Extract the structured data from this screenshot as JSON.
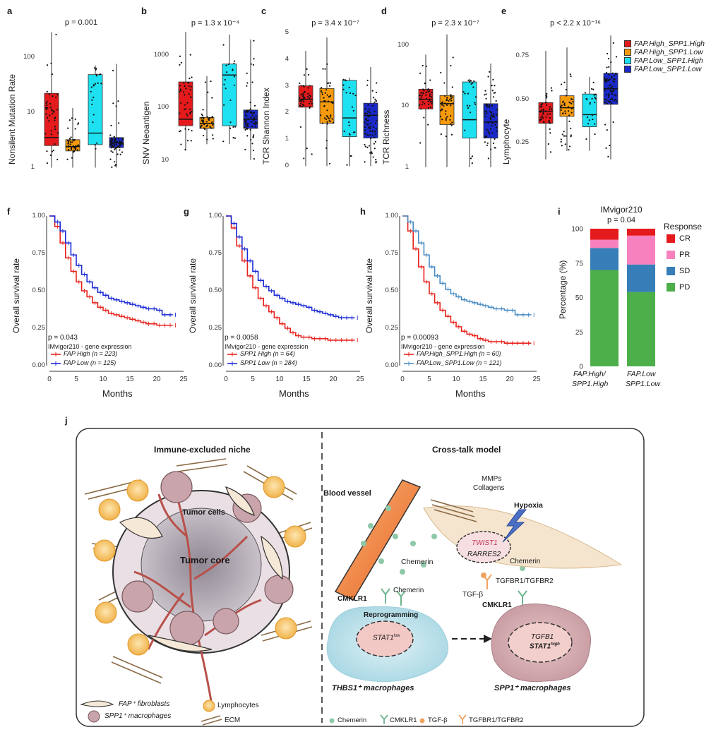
{
  "boxplots": {
    "groups": [
      "FAP.High_SPP1.High",
      "FAP.High_SPP1.Low",
      "FAP.Low_SPP1.High",
      "FAP.Low_SPP1.Low"
    ],
    "colors": [
      "#e41a1c",
      "#f59a0d",
      "#1de1f0",
      "#1a29c7"
    ],
    "panels": [
      {
        "label": "a",
        "pvalue": "p = 0.001",
        "ylabel": "Nonsilent Mutation Rate",
        "scale": "log",
        "ticks": [
          "100",
          "10",
          "1"
        ],
        "chart_data": {
          "type": "box",
          "median": [
            3.5,
            2.4,
            4.2,
            2.8
          ],
          "q1": [
            2.5,
            2.0,
            2.6,
            2.3
          ],
          "q3": [
            22,
            3.2,
            48,
            3.5
          ],
          "min": [
            1,
            1,
            1,
            1
          ],
          "max": [
            280,
            12,
            70,
            75
          ]
        }
      },
      {
        "label": "b",
        "pvalue": "p = 1.3 x 10⁻⁴",
        "ylabel": "SNV Neoantigen",
        "scale": "log",
        "ticks": [
          "1000",
          "100",
          "10"
        ],
        "chart_data": {
          "type": "box",
          "median": [
            60,
            50,
            420,
            60
          ],
          "q1": [
            45,
            40,
            45,
            40
          ],
          "q3": [
            310,
            65,
            680,
            90
          ],
          "min": [
            15,
            20,
            20,
            10
          ],
          "max": [
            2800,
            400,
            2500,
            2000
          ]
        }
      },
      {
        "label": "c",
        "pvalue": "p = 3.4 x 10⁻⁷",
        "ylabel": "TCR Shannon Index",
        "scale": "linear",
        "ticks": [
          "5",
          "4",
          "3",
          "2",
          "1",
          "0"
        ],
        "chart_data": {
          "type": "box",
          "median": [
            2.5,
            2.4,
            1.8,
            1.9
          ],
          "q1": [
            2.2,
            1.6,
            1.1,
            1.05
          ],
          "q3": [
            3.0,
            2.9,
            3.2,
            2.35
          ],
          "min": [
            0,
            0,
            0,
            0
          ],
          "max": [
            4.3,
            4.8,
            3.3,
            3.7
          ]
        }
      },
      {
        "label": "d",
        "pvalue": "p = 2.3 x 10⁻⁷",
        "ylabel": "TCR Richness",
        "scale": "log",
        "ticks": [
          "100",
          "10",
          "1"
        ],
        "chart_data": {
          "type": "box",
          "median": [
            13,
            11,
            6,
            5.5
          ],
          "q1": [
            9,
            5,
            3,
            3
          ],
          "q3": [
            19,
            15,
            25,
            11
          ],
          "min": [
            1,
            1,
            1,
            1
          ],
          "max": [
            70,
            150,
            28,
            50
          ]
        }
      },
      {
        "label": "e",
        "pvalue": "p < 2.2 x 10⁻¹⁶",
        "ylabel": "Lymphocyte",
        "scale": "linear",
        "ticks": [
          "0.75",
          "0.50",
          "0.25"
        ],
        "chart_data": {
          "type": "box",
          "median": [
            0.43,
            0.45,
            0.41,
            0.56
          ],
          "q1": [
            0.36,
            0.4,
            0.34,
            0.47
          ],
          "q3": [
            0.48,
            0.52,
            0.53,
            0.65
          ],
          "min": [
            0.15,
            0.2,
            0.2,
            0.15
          ],
          "max": [
            0.78,
            0.8,
            0.63,
            0.87
          ]
        }
      }
    ],
    "legend": [
      {
        "name": "FAP.High_SPP1.High",
        "color": "#e41a1c"
      },
      {
        "name": "FAP.High_SPP1.Low",
        "color": "#f59a0d"
      },
      {
        "name": "FAP.Low_SPP1.High",
        "color": "#1de1f0"
      },
      {
        "name": "FAP.Low_SPP1.Low",
        "color": "#1a29c7"
      }
    ]
  },
  "survival": {
    "ylabel": "Overall survival rate",
    "xlabel": "Months",
    "yticks": [
      "1.00",
      "0.75",
      "0.50",
      "0.25",
      "0.00"
    ],
    "xticks": [
      "0",
      "5",
      "10",
      "15",
      "20",
      "25"
    ],
    "panels": [
      {
        "label": "f",
        "pvalue": "p = 0.043",
        "caption": "IMvigor210 - gene expression",
        "chart_data": {
          "type": "line",
          "series": [
            {
              "name": "FAP High (n = 223)",
              "color": "#e8231e",
              "x": [
                0,
                1,
                2,
                3,
                4,
                5,
                6,
                7,
                8,
                9,
                10,
                11,
                12,
                13,
                14,
                15,
                16,
                17,
                18,
                19,
                20,
                21,
                22,
                23
              ],
              "y": [
                1,
                0.93,
                0.82,
                0.72,
                0.63,
                0.56,
                0.5,
                0.46,
                0.42,
                0.39,
                0.37,
                0.35,
                0.34,
                0.33,
                0.32,
                0.31,
                0.3,
                0.29,
                0.28,
                0.28,
                0.27,
                0.27,
                0.27,
                0.27
              ]
            },
            {
              "name": "FAP Low (n = 125)",
              "color": "#1c2bd6",
              "x": [
                0,
                1,
                2,
                3,
                4,
                5,
                6,
                7,
                8,
                9,
                10,
                11,
                12,
                13,
                14,
                15,
                16,
                17,
                18,
                19,
                20,
                21,
                22,
                23
              ],
              "y": [
                1,
                0.96,
                0.9,
                0.82,
                0.74,
                0.67,
                0.61,
                0.56,
                0.52,
                0.49,
                0.47,
                0.45,
                0.44,
                0.43,
                0.42,
                0.41,
                0.4,
                0.39,
                0.38,
                0.38,
                0.37,
                0.34,
                0.34,
                0.34
              ]
            }
          ]
        }
      },
      {
        "label": "g",
        "pvalue": "p = 0.0058",
        "caption": "IMvigor210 - gene expression",
        "chart_data": {
          "type": "line",
          "series": [
            {
              "name": "SPP1 High (n = 64)",
              "color": "#e8231e",
              "x": [
                0,
                1,
                2,
                3,
                4,
                5,
                6,
                7,
                8,
                9,
                10,
                11,
                12,
                13,
                14,
                15,
                16,
                17,
                18,
                19,
                20,
                21,
                22,
                23,
                24
              ],
              "y": [
                1,
                0.92,
                0.8,
                0.7,
                0.6,
                0.52,
                0.45,
                0.4,
                0.36,
                0.32,
                0.28,
                0.25,
                0.22,
                0.2,
                0.19,
                0.19,
                0.18,
                0.18,
                0.18,
                0.17,
                0.17,
                0.17,
                0.17,
                0.17,
                0.17
              ]
            },
            {
              "name": "SPP1 Low (n = 284)",
              "color": "#1c2bd6",
              "x": [
                0,
                1,
                2,
                3,
                4,
                5,
                6,
                7,
                8,
                9,
                10,
                11,
                12,
                13,
                14,
                15,
                16,
                17,
                18,
                19,
                20,
                21,
                22,
                23,
                24
              ],
              "y": [
                1,
                0.95,
                0.86,
                0.78,
                0.7,
                0.63,
                0.57,
                0.53,
                0.5,
                0.47,
                0.45,
                0.43,
                0.42,
                0.41,
                0.4,
                0.39,
                0.37,
                0.36,
                0.35,
                0.34,
                0.33,
                0.32,
                0.32,
                0.32,
                0.32
              ]
            }
          ]
        }
      },
      {
        "label": "h",
        "pvalue": "p = 0.00093",
        "caption": "IMvigor210 - gene expression",
        "chart_data": {
          "type": "line",
          "series": [
            {
              "name": "FAP.High_SPP1.High (n = 60)",
              "color": "#e8231e",
              "x": [
                0,
                1,
                2,
                3,
                4,
                5,
                6,
                7,
                8,
                9,
                10,
                11,
                12,
                13,
                14,
                15,
                16,
                17,
                18,
                19,
                20,
                21,
                22,
                23,
                24
              ],
              "y": [
                1,
                0.9,
                0.78,
                0.66,
                0.56,
                0.48,
                0.42,
                0.37,
                0.33,
                0.29,
                0.26,
                0.23,
                0.21,
                0.2,
                0.18,
                0.17,
                0.16,
                0.16,
                0.16,
                0.15,
                0.15,
                0.15,
                0.15,
                0.15,
                0.15
              ]
            },
            {
              "name": "FAP.Low_SPP1.Low (n = 121)",
              "color": "#4a8cc4",
              "x": [
                0,
                1,
                2,
                3,
                4,
                5,
                6,
                7,
                8,
                9,
                10,
                11,
                12,
                13,
                14,
                15,
                16,
                17,
                18,
                19,
                20,
                21,
                22,
                23,
                24
              ],
              "y": [
                1,
                0.96,
                0.9,
                0.82,
                0.74,
                0.66,
                0.6,
                0.55,
                0.51,
                0.48,
                0.46,
                0.44,
                0.43,
                0.42,
                0.41,
                0.4,
                0.39,
                0.38,
                0.38,
                0.37,
                0.37,
                0.34,
                0.34,
                0.34,
                0.34
              ]
            }
          ]
        }
      }
    ]
  },
  "panel_i": {
    "label": "i",
    "title": "IMvigor210",
    "pvalue": "p = 0.04",
    "ylabel": "Percentage (%)",
    "yticks": [
      "100",
      "75",
      "50",
      "25",
      "0"
    ],
    "legend_title": "Response",
    "chart_data": {
      "type": "bar",
      "categories": [
        "FAP.High/ SPP1.High",
        "FAP.Low SPP1.Low"
      ],
      "series": [
        {
          "name": "PD",
          "color": "#4daf4a",
          "values": [
            70,
            54
          ]
        },
        {
          "name": "SD",
          "color": "#377eb8",
          "values": [
            16,
            20
          ]
        },
        {
          "name": "PR",
          "color": "#f781bf",
          "values": [
            6,
            21
          ]
        },
        {
          "name": "CR",
          "color": "#e41a1c",
          "values": [
            8,
            5
          ]
        }
      ],
      "legend_order": [
        "CR",
        "PR",
        "SD",
        "PD"
      ]
    },
    "xlabel1_a": "FAP.High/",
    "xlabel1_b": "SPP1.High",
    "xlabel2_a": "FAP.Low",
    "xlabel2_b": "SPP1.Low"
  },
  "schematic": {
    "label": "j",
    "left_title": "Immune-excluded niche",
    "right_title": "Cross-talk model",
    "tumor_cells": "Tumor cells",
    "tumor_core": "Tumor core",
    "legend_fibro": "FAP⁺ fibroblasts",
    "legend_macro": "SPP1⁺ macrophages",
    "legend_lymph": "Lymphocytes",
    "legend_ecm": "ECM",
    "blood_vessel": "Blood vessel",
    "mmps": "MMPs",
    "collagens": "Collagens",
    "hypoxia": "Hypoxia",
    "twist1": "TWIST1",
    "rarres2": "RARRES2",
    "chemerin1": "Chemerin",
    "chemerin2": "Chemerin",
    "chemerin3": "Chemerin",
    "tgfbr": "TGFBR1/TGFBR2",
    "tgfb": "TGF-β",
    "cmklr1_a": "CMKLR1",
    "cmklr1_b": "CMKLR1",
    "reprogramming": "Reprogramming",
    "stat1low": "STAT1",
    "stat1low_sup": "low",
    "tgfb1": "TGFB1",
    "stat1high": "STAT1",
    "stat1high_sup": "high",
    "thbs1": "THBS1⁺ macrophages",
    "spp1": "SPP1⁺ macrophages",
    "key_chemerin": "Chemerin",
    "key_cmklr1": "CMKLR1",
    "key_tgfb": "TGF-β",
    "key_tgfbr": "TGFBR1/TGFBR2"
  }
}
